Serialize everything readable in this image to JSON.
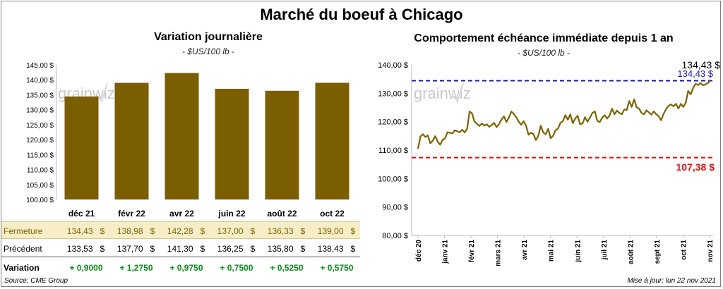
{
  "main_title": "Marché du boeuf à Chicago",
  "watermark": "grainwiz",
  "source": "Source: CME Group",
  "update": "Mise à jour: lun 22 nov 2021",
  "colors": {
    "bar": "#7a5e00",
    "line": "#7a6400",
    "high": "#1a1aaa",
    "low": "#e01010",
    "positive": "#0f8a1f",
    "fermeture_bg": "#f7eec8"
  },
  "chart_data": [
    {
      "type": "bar",
      "title": "Variation journalière",
      "subtitle": "- $US/100 lb -",
      "categories": [
        "déc 21",
        "févr 22",
        "avr 22",
        "juin 22",
        "août 22",
        "oct 22"
      ],
      "values": [
        134.43,
        138.98,
        142.28,
        137.0,
        136.33,
        139.0
      ],
      "ylim": [
        100,
        145
      ],
      "yticks": [
        "100,00 $",
        "105,00 $",
        "110,00 $",
        "115,00 $",
        "120,00 $",
        "125,00 $",
        "130,00 $",
        "135,00 $",
        "140,00 $",
        "145,00 $"
      ],
      "ytick_values": [
        100,
        105,
        110,
        115,
        120,
        125,
        130,
        135,
        140,
        145
      ],
      "grid": false,
      "table": {
        "rows": [
          {
            "label": "Fermeture",
            "values": [
              "134,43",
              "138,98",
              "142,28",
              "137,00",
              "136,33",
              "139,00"
            ],
            "unit": "$"
          },
          {
            "label": "Précédent",
            "values": [
              "133,53",
              "137,70",
              "141,30",
              "136,25",
              "135,80",
              "138,43"
            ],
            "unit": "$"
          },
          {
            "label": "Variation",
            "values": [
              "+ 0,9000",
              "+ 1,2750",
              "+ 0,9750",
              "+ 0,7500",
              "+ 0,5250",
              "+ 0,5750"
            ]
          }
        ]
      }
    },
    {
      "type": "line",
      "title": "Comportement  échéance immédiate depuis 1 an",
      "subtitle": "- $US/100 lb -",
      "xlabels": [
        "déc 20",
        "janv 21",
        "févr 21",
        "mars 21",
        "avr 21",
        "mai 21",
        "juin 21",
        "juil 21",
        "août 21",
        "sept 21",
        "oct 21",
        "nov 21"
      ],
      "yticks": [
        "80,00 $",
        "90,00 $",
        "100,00 $",
        "110,00 $",
        "120,00 $",
        "130,00 $",
        "140,00 $"
      ],
      "ytick_values": [
        80,
        90,
        100,
        110,
        120,
        130,
        140
      ],
      "ylim": [
        80,
        140
      ],
      "grid": false,
      "current_label": "134,43 $",
      "high": {
        "value": 134.43,
        "label": "134,43 $"
      },
      "low": {
        "value": 107.38,
        "label": "107,38 $"
      },
      "series": [
        {
          "values": [
            110.5,
            114.8,
            115.6,
            114.6,
            115.2,
            112.4,
            113.3,
            114.9,
            113.1,
            111.9,
            113.6,
            114.1,
            116.3,
            116.1,
            115.9,
            117.0,
            116.6,
            116.3,
            117.2,
            116.2,
            117.5,
            123.6,
            122.9,
            120.1,
            119.2,
            118.5,
            119.4,
            118.6,
            119.1,
            118.2,
            118.8,
            119.6,
            118.1,
            119.2,
            120.8,
            121.9,
            119.9,
            121.4,
            123.6,
            122.7,
            121.6,
            120.1,
            118.9,
            120.2,
            118.6,
            115.4,
            116.1,
            115.7,
            113.5,
            115.1,
            118.6,
            116.2,
            115.6,
            117.5,
            114.2,
            115.0,
            117.0,
            117.6,
            119.6,
            120.2,
            122.3,
            120.7,
            122.6,
            119.5,
            121.1,
            122.1,
            119.1,
            119.4,
            121.6,
            120.0,
            121.4,
            123.1,
            123.6,
            120.3,
            119.9,
            121.4,
            122.3,
            121.1,
            122.2,
            124.6,
            122.6,
            123.9,
            123.1,
            122.6,
            124.3,
            124.1,
            127.3,
            125.2,
            127.9,
            125.1,
            124.6,
            123.1,
            122.6,
            124.0,
            123.3,
            122.5,
            123.6,
            122.6,
            121.9,
            120.5,
            122.8,
            124.4,
            125.6,
            126.1,
            125.4,
            126.3,
            124.6,
            126.3,
            125.2,
            126.6,
            130.8,
            129.6,
            131.8,
            133.3,
            132.9,
            133.6,
            132.8,
            133.1,
            133.6,
            134.43
          ]
        }
      ]
    }
  ]
}
